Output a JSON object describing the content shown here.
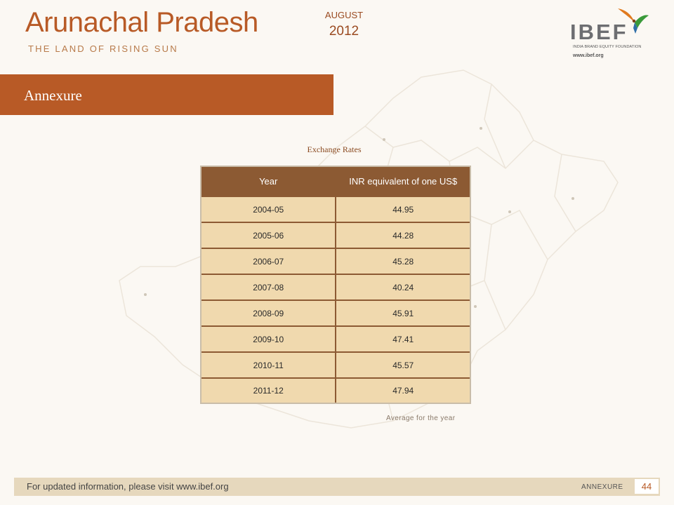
{
  "header": {
    "title": "Arunachal Pradesh",
    "subtitle": "THE LAND OF RISING SUN",
    "month": "AUGUST",
    "year": "2012"
  },
  "logo": {
    "text": "IBEF",
    "subtext": "INDIA BRAND EQUITY FOUNDATION",
    "url": "www.ibef.org"
  },
  "section": {
    "title": "Annexure"
  },
  "table": {
    "caption": "Exchange Rates",
    "headers": [
      "Year",
      "INR equivalent of one US$"
    ],
    "rows": [
      [
        "2004-05",
        "44.95"
      ],
      [
        "2005-06",
        "44.28"
      ],
      [
        "2006-07",
        "45.28"
      ],
      [
        "2007-08",
        "40.24"
      ],
      [
        "2008-09",
        "45.91"
      ],
      [
        "2009-10",
        "47.41"
      ],
      [
        "2010-11",
        "45.57"
      ],
      [
        "2011-12",
        "47.94"
      ]
    ],
    "note": "Average for the year"
  },
  "footer": {
    "text": "For updated information, please visit www.ibef.org",
    "section_label": "ANNEXURE",
    "page": "44"
  },
  "colors": {
    "accent": "#b85a26",
    "table_header": "#8c5a33",
    "table_cell": "#f0d9ae",
    "footer_bg": "#e6d8bd"
  }
}
